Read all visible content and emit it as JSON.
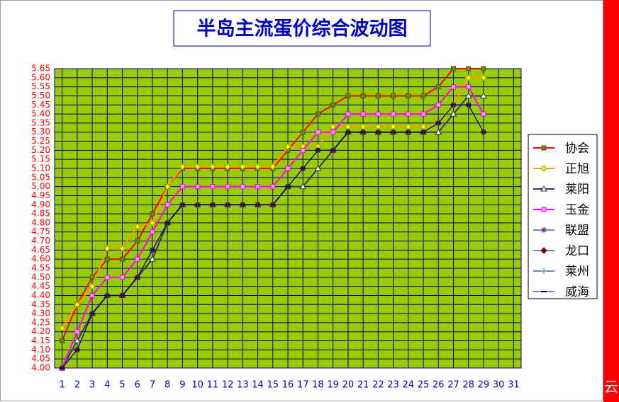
{
  "chart_data": {
    "type": "line",
    "title": "半岛主流蛋价综合波动图",
    "side_text": "云",
    "categories": [
      "1",
      "2",
      "3",
      "4",
      "5",
      "6",
      "7",
      "8",
      "9",
      "10",
      "11",
      "12",
      "13",
      "14",
      "15",
      "16",
      "17",
      "18",
      "19",
      "20",
      "21",
      "22",
      "23",
      "24",
      "25",
      "26",
      "27",
      "28",
      "29",
      "30",
      "31"
    ],
    "ylim": [
      4,
      5.65
    ],
    "yticks": [
      {
        "value": 4,
        "label": "4.00"
      },
      4.05,
      {
        "value": 4.1,
        "label": "4.10"
      },
      4.15,
      {
        "value": 4.2,
        "label": "4.20"
      },
      4.25,
      {
        "value": 4.3,
        "label": "4.30"
      },
      4.35,
      {
        "value": 4.4,
        "label": "4.40"
      },
      4.45,
      {
        "value": 4.5,
        "label": "4.50"
      },
      4.55,
      {
        "value": 4.6,
        "label": "4.60"
      },
      4.65,
      {
        "value": 4.7,
        "label": "4.70"
      },
      4.75,
      {
        "value": 4.8,
        "label": "4.80"
      },
      4.85,
      {
        "value": 4.9,
        "label": "4.90"
      },
      4.95,
      {
        "value": 5,
        "label": "5.00"
      },
      5.05,
      {
        "value": 5.1,
        "label": "5.10"
      },
      5.15,
      {
        "value": 5.2,
        "label": "5.20"
      },
      5.25,
      {
        "value": 5.3,
        "label": "5.30"
      },
      5.35,
      {
        "value": 5.4,
        "label": "5.40"
      },
      5.45,
      {
        "value": 5.5,
        "label": "5.50"
      },
      5.55,
      {
        "value": 5.6,
        "label": "5.60"
      },
      5.65
    ],
    "grid": true,
    "legend": "right",
    "background": "#99cc00",
    "series": [
      {
        "name": "协会",
        "color": "#ff0000",
        "marker": "square",
        "marker_color": "#808000",
        "values": [
          4.15,
          4.35,
          4.5,
          4.6,
          4.6,
          4.7,
          4.85,
          5,
          5.1,
          5.1,
          5.1,
          5.1,
          5.1,
          5.1,
          5.1,
          5.2,
          5.3,
          5.4,
          5.45,
          5.5,
          5.5,
          5.5,
          5.5,
          5.5,
          5.5,
          5.55,
          5.65,
          5.65,
          5.65,
          null,
          null
        ]
      },
      {
        "name": "正旭",
        "color": "#ff9900",
        "marker": "diamond",
        "marker_color": "#ffff00",
        "values": [
          4.22,
          4.35,
          4.45,
          4.66,
          4.66,
          4.78,
          4.8,
          5,
          5.11,
          5.11,
          5.11,
          5.11,
          5.11,
          5.11,
          5.11,
          5.22,
          5.22,
          5.22,
          5.33,
          5.33,
          5.33,
          5.33,
          5.33,
          5.33,
          5.33,
          5.35,
          5.45,
          5.6,
          5.6,
          null,
          null
        ]
      },
      {
        "name": "莱阳",
        "color": "#333366",
        "marker": "triangle",
        "marker_color": "#ffffff",
        "values": [
          4,
          4.15,
          4.3,
          4.4,
          4.4,
          4.5,
          4.6,
          4.8,
          4.9,
          4.9,
          4.9,
          4.9,
          4.9,
          4.9,
          4.9,
          5,
          5,
          5.1,
          5.2,
          5.3,
          5.3,
          5.3,
          5.3,
          5.3,
          5.3,
          5.3,
          5.4,
          5.5,
          5.5,
          null,
          null
        ]
      },
      {
        "name": "玉金",
        "color": "#ff00ff",
        "marker": "square",
        "marker_color": "#ff99ff",
        "values": [
          4,
          4.2,
          4.4,
          4.5,
          4.5,
          4.6,
          4.75,
          4.9,
          5,
          5,
          5,
          5,
          5,
          5,
          5,
          5.1,
          5.2,
          5.3,
          5.3,
          5.4,
          5.4,
          5.4,
          5.4,
          5.4,
          5.4,
          5.45,
          5.55,
          5.55,
          5.4,
          null,
          null
        ]
      },
      {
        "name": "联盟",
        "color": "#000080",
        "marker": "star",
        "marker_color": "#800080",
        "values": [
          4,
          4.1,
          4.3,
          4.4,
          4.4,
          4.5,
          4.65,
          4.8,
          4.9,
          4.9,
          4.9,
          4.9,
          4.9,
          4.9,
          4.9,
          5,
          5.1,
          5.2,
          5.2,
          5.3,
          5.3,
          5.3,
          5.3,
          5.3,
          5.3,
          5.35,
          5.45,
          5.45,
          5.3,
          null,
          null
        ]
      },
      {
        "name": "龙口",
        "color": "#000080",
        "marker": "diamond",
        "marker_color": "#800000",
        "values": [
          4,
          4.1,
          4.3,
          4.4,
          4.4,
          4.5,
          4.65,
          4.8,
          4.9,
          4.9,
          4.9,
          4.9,
          4.9,
          4.9,
          4.9,
          5,
          5.1,
          5.2,
          5.2,
          5.3,
          5.3,
          5.3,
          5.3,
          5.3,
          5.3,
          5.35,
          5.45,
          5.45,
          5.3,
          null,
          null
        ]
      },
      {
        "name": "莱州",
        "color": "#000080",
        "marker": "plus",
        "marker_color": "#008080",
        "values": [
          4,
          4.1,
          4.3,
          4.4,
          4.4,
          4.5,
          4.65,
          4.8,
          4.9,
          4.9,
          4.9,
          4.9,
          4.9,
          4.9,
          4.9,
          5,
          5.1,
          5.2,
          5.2,
          5.3,
          5.3,
          5.3,
          5.3,
          5.3,
          5.3,
          5.35,
          5.45,
          5.45,
          5.3,
          null,
          null
        ]
      },
      {
        "name": "威海",
        "color": "#000080",
        "marker": "dash",
        "marker_color": "#000080",
        "values": [
          4,
          4.1,
          4.3,
          4.4,
          4.4,
          4.5,
          4.65,
          4.8,
          4.9,
          4.9,
          4.9,
          4.9,
          4.9,
          4.9,
          4.9,
          5,
          5.1,
          5.2,
          5.2,
          5.3,
          5.3,
          5.3,
          5.3,
          5.3,
          5.3,
          5.35,
          5.45,
          5.45,
          5.3,
          null,
          null
        ]
      }
    ]
  }
}
